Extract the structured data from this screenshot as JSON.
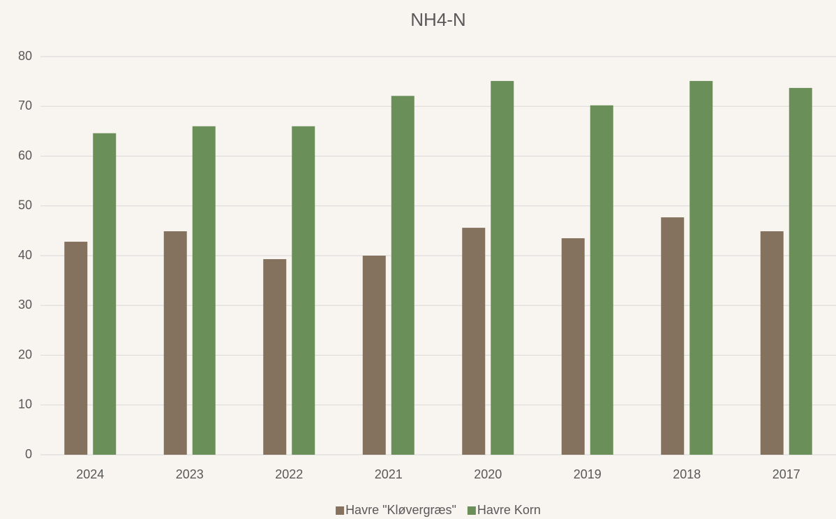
{
  "chart_data": {
    "type": "bar",
    "title": "NH4-N",
    "categories": [
      "2024",
      "2023",
      "2022",
      "2021",
      "2020",
      "2019",
      "2018",
      "2017"
    ],
    "series": [
      {
        "name": "Havre \"Kløvergræs\"",
        "color": "#85725e",
        "values": [
          42.8,
          44.9,
          39.3,
          40.0,
          45.6,
          43.5,
          47.7,
          44.9
        ]
      },
      {
        "name": "Havre Korn",
        "color": "#6a8f58",
        "values": [
          64.6,
          66.0,
          66.0,
          72.1,
          75.1,
          70.2,
          75.1,
          73.7
        ]
      }
    ],
    "ylim": [
      0,
      80
    ],
    "yticks": [
      0,
      10,
      20,
      30,
      40,
      50,
      60,
      70,
      80
    ],
    "grid": true,
    "legend": "bottom"
  }
}
